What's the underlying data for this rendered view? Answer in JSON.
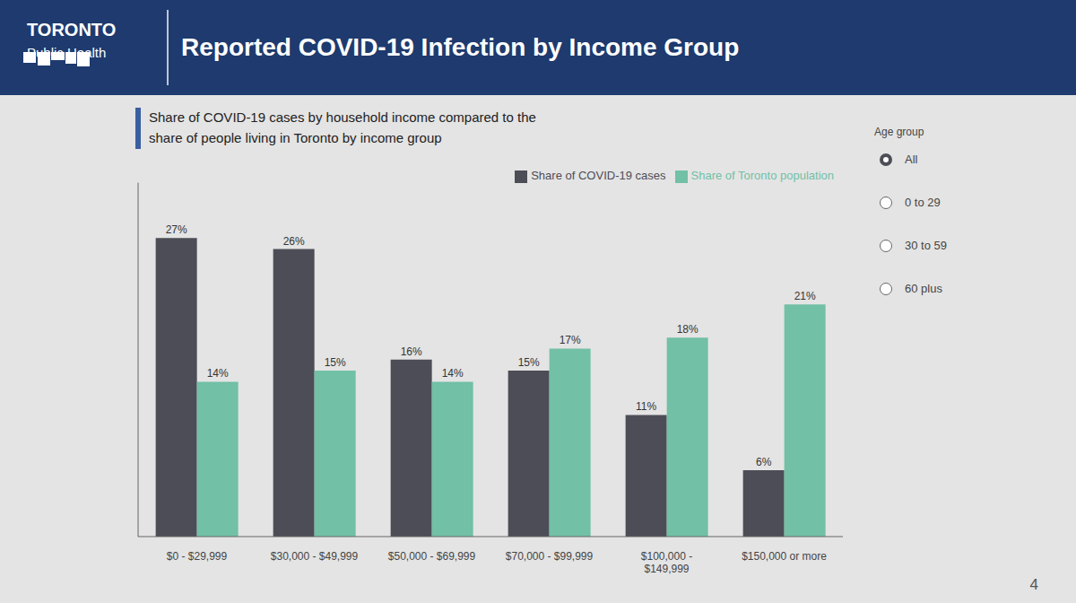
{
  "chart_data": {
    "type": "bar",
    "title": "Reported COVID-19 Infection by Income Group",
    "subtitle": [
      "Share of COVID-19 cases by household income compared to the",
      "share of people living in Toronto by income group"
    ],
    "annotations": [
      "TORONTO",
      "Public Health",
      "Age group",
      "All",
      "0 to 29",
      "30 to 59",
      "60 plus",
      "4"
    ],
    "categories": [
      "$0 - $29,999",
      "$30,000 - $49,999",
      "$50,000 - $69,999",
      "$70,000 - $99,999",
      "$100,000 -\n$149,999",
      "$150,000 or more"
    ],
    "series": [
      {
        "name": "Share of COVID-19 cases",
        "color": "#4d4d57",
        "values": [
          27,
          26,
          16,
          15,
          11,
          6
        ],
        "value_labels": [
          "27%",
          "26%",
          "16%",
          "15%",
          "11%",
          "6%"
        ]
      },
      {
        "name": "Share of Toronto population",
        "color": "#72c0a6",
        "values": [
          14,
          15,
          14,
          17,
          18,
          21
        ],
        "value_labels": [
          "14%",
          "15%",
          "14%",
          "17%",
          "18%",
          "21%"
        ]
      }
    ],
    "ylim": [
      0,
      32
    ],
    "tick_labels": "x",
    "grid": false,
    "legend": "upper right",
    "data_labels": true
  }
}
